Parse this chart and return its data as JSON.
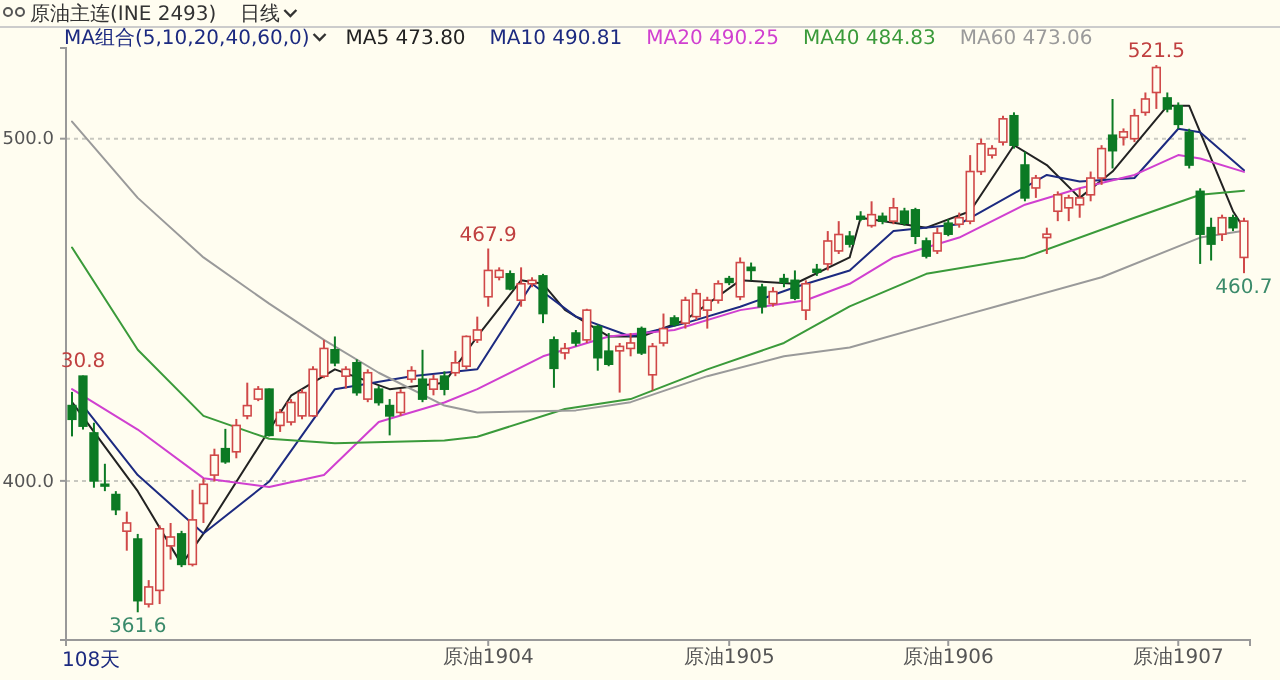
{
  "chart_data": {
    "type": "candlestick",
    "title": "原油主连(INE 2493)",
    "subtitle": "日线",
    "legend_title": "MA组合(5,10,20,40,60,0)",
    "categories": [
      null,
      null,
      null,
      null,
      null,
      null,
      null,
      null,
      null,
      null,
      null,
      null,
      null,
      null,
      null,
      null,
      null,
      null,
      null,
      null,
      null,
      null,
      null,
      null,
      null,
      null,
      null,
      null,
      null,
      null,
      null,
      null,
      null,
      null,
      null,
      null,
      null,
      null,
      "原油1904",
      null,
      null,
      null,
      null,
      null,
      null,
      null,
      null,
      null,
      null,
      null,
      null,
      null,
      null,
      null,
      null,
      null,
      null,
      null,
      null,
      null,
      "原油1905",
      null,
      null,
      null,
      null,
      null,
      null,
      null,
      null,
      null,
      null,
      null,
      null,
      null,
      null,
      null,
      null,
      null,
      null,
      null,
      "原油1906",
      null,
      null,
      null,
      null,
      null,
      null,
      null,
      null,
      null,
      null,
      null,
      null,
      null,
      null,
      null,
      null,
      null,
      null,
      null,
      null,
      "原油1907",
      null,
      null,
      null,
      null,
      null,
      null
    ],
    "ohlc": [
      [
        422,
        426,
        413,
        418
      ],
      [
        430.6,
        430.8,
        415,
        416
      ],
      [
        414,
        417,
        398,
        400
      ],
      [
        399,
        405,
        397,
        398.5
      ],
      [
        396,
        397,
        390,
        391.6
      ],
      [
        385.3,
        391,
        379.6,
        387.7
      ],
      [
        383,
        384.5,
        361.6,
        365
      ],
      [
        364,
        371,
        363,
        369
      ],
      [
        368,
        387,
        364,
        386
      ],
      [
        381,
        387.7,
        377,
        383.6
      ],
      [
        384.5,
        385.4,
        374.8,
        375.6
      ],
      [
        375.6,
        397.4,
        375,
        388.6
      ],
      [
        393.4,
        400.7,
        387.7,
        399
      ],
      [
        401.7,
        409.4,
        399.8,
        407.5
      ],
      [
        409.4,
        415.2,
        405,
        405.6
      ],
      [
        408.5,
        418.1,
        406.6,
        416.2
      ],
      [
        419,
        428.7,
        418,
        422
      ],
      [
        423.9,
        427.7,
        423.3,
        426.8
      ],
      [
        426.8,
        427,
        413,
        413.3
      ],
      [
        416.2,
        421,
        414.3,
        420
      ],
      [
        417.2,
        423.9,
        416.2,
        422.9
      ],
      [
        419,
        426.8,
        418,
        425.8
      ],
      [
        419,
        433.5,
        418.7,
        432.6
      ],
      [
        430.6,
        441.2,
        430,
        438.7
      ],
      [
        438.3,
        442.2,
        433.5,
        434.5
      ],
      [
        430.6,
        433.5,
        427,
        432.6
      ],
      [
        434.5,
        435.5,
        424.9,
        425.8
      ],
      [
        423.9,
        432.6,
        423,
        431.6
      ],
      [
        426.8,
        427.7,
        422,
        422.9
      ],
      [
        422,
        423.9,
        413.3,
        419
      ],
      [
        420,
        426.8,
        419,
        425.8
      ],
      [
        429.7,
        433.5,
        428.7,
        432.2
      ],
      [
        429.7,
        438.3,
        423,
        423.9
      ],
      [
        426.8,
        431,
        425,
        429.7
      ],
      [
        430.6,
        432,
        425,
        426.8
      ],
      [
        431.6,
        438,
        430.6,
        434.5
      ],
      [
        433.5,
        442.5,
        432.6,
        442.2
      ],
      [
        441.2,
        448,
        440.3,
        444.1
      ],
      [
        453.8,
        467.9,
        450.9,
        461.5
      ],
      [
        459.5,
        462.4,
        458.6,
        461.5
      ],
      [
        460.5,
        461.5,
        455.7,
        456.1
      ],
      [
        452.8,
        462.4,
        450.9,
        457.6
      ],
      [
        457.6,
        459.5,
        456.6,
        458.6
      ],
      [
        459.9,
        460.5,
        446.1,
        448.9
      ],
      [
        441.2,
        442.2,
        427.2,
        432.9
      ],
      [
        437.4,
        440.3,
        435.5,
        438.7
      ],
      [
        443.2,
        444.1,
        439.3,
        440.3
      ],
      [
        441.2,
        450.3,
        440.3,
        449.9
      ],
      [
        445.1,
        445.7,
        432.2,
        436
      ],
      [
        437.9,
        443.2,
        433.5,
        434.1
      ],
      [
        438,
        440.3,
        425.8,
        439.3
      ],
      [
        438.7,
        443.2,
        436.4,
        440.3
      ],
      [
        444.5,
        445.1,
        436.8,
        437.4
      ],
      [
        431,
        440.3,
        426.4,
        439.3
      ],
      [
        440.3,
        448.9,
        439.3,
        444.5
      ],
      [
        447.6,
        448.4,
        445.1,
        445.7
      ],
      [
        446.1,
        453.8,
        444.5,
        452.8
      ],
      [
        448,
        456.1,
        447,
        454.7
      ],
      [
        449.9,
        453.8,
        444.5,
        452.8
      ],
      [
        452.8,
        458.6,
        451.8,
        457.6
      ],
      [
        459.1,
        459.9,
        457.2,
        458
      ],
      [
        453.8,
        465.3,
        452.8,
        463.8
      ],
      [
        462.4,
        463.8,
        458.6,
        461.5
      ],
      [
        456.6,
        457.6,
        448.9,
        450.9
      ],
      [
        451.8,
        456.6,
        450.9,
        455.3
      ],
      [
        459.1,
        460.5,
        456.6,
        458
      ],
      [
        458.6,
        461.5,
        452.8,
        453.4
      ],
      [
        449.9,
        458.6,
        447,
        457.6
      ],
      [
        461.8,
        463.4,
        459.9,
        461
      ],
      [
        463.4,
        473,
        461.5,
        470.1
      ],
      [
        467.2,
        475.9,
        466.3,
        472
      ],
      [
        471.5,
        473,
        468.2,
        469.2
      ],
      [
        477.3,
        478.8,
        475.9,
        476.5
      ],
      [
        474.6,
        481.7,
        474,
        477.8
      ],
      [
        477.3,
        478.4,
        475,
        475.9
      ],
      [
        475.9,
        482.7,
        475,
        479.8
      ],
      [
        478.8,
        479.8,
        474.6,
        475.3
      ],
      [
        479.2,
        479.8,
        469.2,
        471.5
      ],
      [
        470.1,
        471.1,
        465,
        465.7
      ],
      [
        467.2,
        474,
        466.3,
        472.4
      ],
      [
        475.3,
        476.5,
        471.5,
        472.1
      ],
      [
        475,
        478.4,
        474,
        476.9
      ],
      [
        475.9,
        495.2,
        475,
        490.4
      ],
      [
        490.4,
        500,
        489.4,
        498.5
      ],
      [
        495.2,
        498.1,
        494.2,
        497.1
      ],
      [
        499,
        506.7,
        498,
        505.8
      ],
      [
        506.7,
        507.7,
        497.1,
        498.1
      ],
      [
        492.3,
        496.2,
        481.7,
        482.7
      ],
      [
        485.6,
        489.4,
        482.7,
        488.5
      ],
      [
        471.1,
        474,
        466.3,
        472.1
      ],
      [
        478.8,
        484.6,
        475.9,
        483.6
      ],
      [
        479.8,
        483.6,
        475.9,
        482.7
      ],
      [
        480.7,
        485.5,
        476.9,
        482.7
      ],
      [
        483.6,
        490.4,
        481.7,
        488.5
      ],
      [
        488.5,
        498.1,
        486.5,
        497.1
      ],
      [
        501,
        511.6,
        491.3,
        496.5
      ],
      [
        500.4,
        503,
        498,
        502
      ],
      [
        500,
        508.7,
        499,
        506.7
      ],
      [
        507.7,
        513.5,
        506.7,
        511.6
      ],
      [
        513.5,
        521.5,
        508.7,
        520.8
      ],
      [
        511.9,
        513.5,
        507.7,
        508.7
      ],
      [
        509.6,
        510.6,
        502.9,
        504.2
      ],
      [
        501.9,
        502.9,
        491.3,
        492.3
      ],
      [
        484.6,
        485.5,
        463.4,
        472.1
      ],
      [
        474,
        476.9,
        464.4,
        469.2
      ],
      [
        472.1,
        477.8,
        470.1,
        476.9
      ],
      [
        476.9,
        477.8,
        473,
        474
      ],
      [
        465.3,
        476.9,
        460.7,
        475.9
      ]
    ],
    "series": [
      {
        "type": "line",
        "name": "MA5 473.80",
        "color": "#222222",
        "values": [
          423,
          null,
          null,
          null,
          null,
          null,
          397,
          null,
          null,
          null,
          375.6,
          null,
          384.6,
          null,
          null,
          null,
          null,
          null,
          null,
          null,
          424.9,
          null,
          null,
          null,
          432.6,
          null,
          null,
          null,
          null,
          426.8,
          null,
          null,
          null,
          null,
          428.7,
          null,
          null,
          442.2,
          null,
          null,
          null,
          458.6,
          null,
          457.6,
          null,
          450,
          null,
          null,
          null,
          442.2,
          null,
          null,
          442.2,
          null,
          null,
          null,
          447,
          null,
          null,
          null,
          null,
          458.6,
          null,
          null,
          null,
          null,
          457.6,
          null,
          null,
          null,
          null,
          465.3,
          476.9,
          null,
          null,
          null,
          null,
          null,
          474,
          null,
          null,
          null,
          478.8,
          null,
          null,
          null,
          498.1,
          null,
          null,
          492.3,
          null,
          null,
          482.7,
          null,
          null,
          490.4,
          null,
          null,
          null,
          null,
          509.6,
          null,
          509.6,
          null,
          null,
          null,
          478.8,
          473.8
        ]
      },
      {
        "type": "line",
        "name": "MA10 490.81",
        "color": "#1c2a80",
        "values": [
          null,
          422,
          null,
          null,
          null,
          null,
          401.7,
          null,
          null,
          null,
          null,
          null,
          384.6,
          null,
          null,
          null,
          null,
          null,
          399.8,
          null,
          null,
          null,
          null,
          null,
          426.8,
          null,
          null,
          null,
          null,
          null,
          null,
          430.6,
          null,
          null,
          null,
          null,
          null,
          432.6,
          null,
          null,
          null,
          null,
          457.6,
          null,
          null,
          null,
          448,
          null,
          null,
          null,
          null,
          442.2,
          null,
          null,
          null,
          null,
          446.1,
          null,
          null,
          null,
          null,
          450.9,
          null,
          null,
          null,
          null,
          456.6,
          null,
          null,
          null,
          null,
          461.5,
          null,
          null,
          null,
          473,
          null,
          null,
          null,
          null,
          null,
          475,
          null,
          null,
          null,
          null,
          null,
          null,
          null,
          489.4,
          null,
          null,
          487.5,
          null,
          null,
          null,
          null,
          488.5,
          null,
          null,
          null,
          502.9,
          null,
          501.9,
          null,
          null,
          null,
          490.8
        ]
      },
      {
        "type": "line",
        "name": "MA20 490.25",
        "color": "#d040d0",
        "values": [
          426.8,
          null,
          null,
          null,
          null,
          null,
          415,
          null,
          null,
          null,
          null,
          null,
          400.8,
          null,
          null,
          null,
          null,
          null,
          398.2,
          null,
          null,
          null,
          null,
          401.7,
          null,
          null,
          null,
          null,
          417.2,
          null,
          null,
          null,
          null,
          null,
          422.9,
          null,
          null,
          426.8,
          null,
          null,
          null,
          null,
          null,
          436.4,
          null,
          null,
          null,
          null,
          null,
          442.2,
          null,
          null,
          null,
          null,
          null,
          444.1,
          null,
          null,
          null,
          null,
          null,
          449.9,
          null,
          null,
          null,
          null,
          null,
          452.8,
          null,
          null,
          null,
          457.6,
          null,
          null,
          null,
          465.3,
          null,
          null,
          null,
          null,
          null,
          471.1,
          null,
          null,
          null,
          null,
          null,
          480.7,
          null,
          null,
          null,
          null,
          485.5,
          null,
          null,
          null,
          null,
          489.4,
          null,
          null,
          null,
          495.2,
          null,
          494.2,
          null,
          null,
          null,
          490.3
        ]
      },
      {
        "type": "line",
        "name": "MA40 484.83",
        "color": "#3a9a3a",
        "values": [
          468.2,
          null,
          null,
          null,
          null,
          null,
          438.3,
          null,
          null,
          null,
          null,
          null,
          419,
          null,
          null,
          null,
          null,
          null,
          412.3,
          null,
          null,
          null,
          null,
          null,
          411,
          null,
          null,
          null,
          null,
          null,
          null,
          null,
          null,
          null,
          411.8,
          null,
          null,
          412.9,
          null,
          null,
          null,
          null,
          null,
          null,
          null,
          421,
          null,
          null,
          null,
          null,
          null,
          423.9,
          null,
          null,
          null,
          null,
          null,
          null,
          432.6,
          null,
          null,
          null,
          null,
          null,
          null,
          440.3,
          null,
          null,
          null,
          null,
          null,
          451,
          null,
          null,
          null,
          null,
          null,
          null,
          460.5,
          null,
          null,
          null,
          null,
          null,
          null,
          null,
          null,
          465.3,
          null,
          null,
          null,
          null,
          null,
          null,
          null,
          null,
          null,
          476.9,
          null,
          null,
          null,
          null,
          null,
          483.6,
          null,
          null,
          null,
          484.8
        ]
      },
      {
        "type": "line",
        "name": "MA60 473.06",
        "color": "#9a9a9a",
        "values": [
          505,
          null,
          null,
          null,
          null,
          null,
          482.7,
          null,
          null,
          null,
          null,
          null,
          465.3,
          null,
          null,
          null,
          null,
          null,
          451.8,
          null,
          null,
          null,
          null,
          441.2,
          null,
          null,
          null,
          null,
          431.6,
          null,
          null,
          null,
          null,
          null,
          422,
          null,
          null,
          420,
          null,
          null,
          null,
          null,
          null,
          null,
          null,
          null,
          420.6,
          null,
          null,
          null,
          null,
          423,
          null,
          null,
          null,
          null,
          null,
          null,
          430.6,
          null,
          null,
          null,
          null,
          null,
          null,
          436.4,
          null,
          null,
          null,
          null,
          null,
          439,
          null,
          null,
          null,
          null,
          null,
          null,
          null,
          null,
          null,
          448,
          null,
          null,
          null,
          null,
          null,
          null,
          null,
          null,
          null,
          null,
          null,
          null,
          459.5,
          null,
          null,
          null,
          null,
          null,
          null,
          null,
          null,
          471.1,
          null,
          null,
          null,
          473.1
        ]
      }
    ],
    "ylim": [
      353.5,
      526.5
    ],
    "yticks": [
      {
        "value": 400,
        "label": "400.0"
      },
      {
        "value": 500,
        "label": "500.0"
      }
    ],
    "grid": "y",
    "legend": "top",
    "annotations": [
      {
        "text": "30.8",
        "y": 430.8
      },
      {
        "text": "467.9",
        "y": 467.9
      },
      {
        "text": "521.5",
        "y": 521.5
      },
      {
        "text": "460.7",
        "y": 460.7
      },
      {
        "text": "361.6",
        "y": 361.6
      },
      "108天"
    ]
  }
}
